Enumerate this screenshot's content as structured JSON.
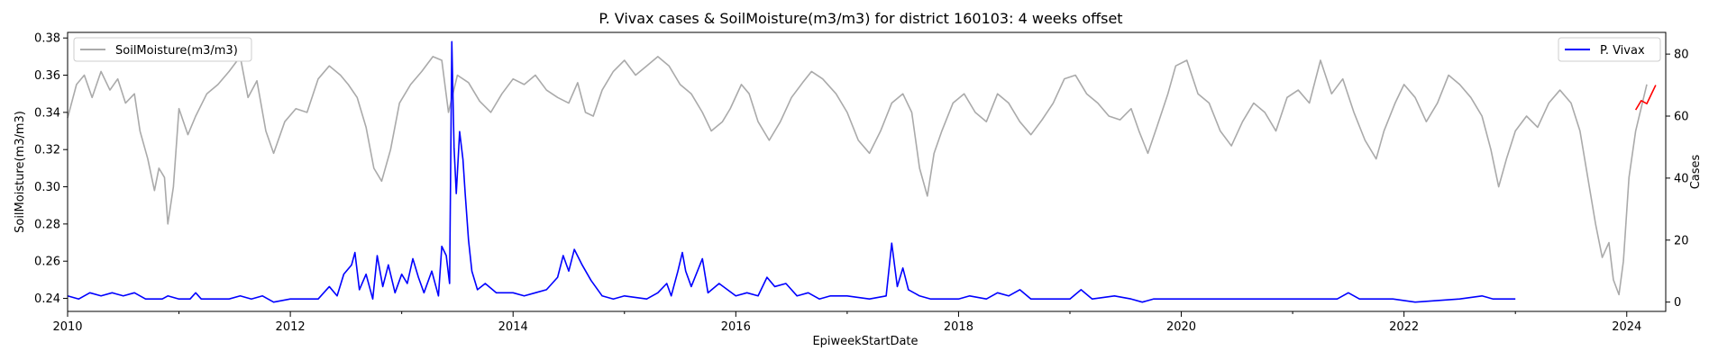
{
  "chart_data": {
    "type": "line",
    "title": "P. Vivax cases & SoilMoisture(m3/m3) for district 160103: 4 weeks offset",
    "xlabel": "EpiweekStartDate",
    "ylabel_left": "SoilMoisture(m3/m3)",
    "ylabel_right": "Cases",
    "x_range": [
      2010.0,
      2024.35
    ],
    "y_left_range": [
      0.233,
      0.383
    ],
    "y_right_range": [
      -3.0,
      87.0
    ],
    "x_ticks": [
      "2010",
      "2012",
      "2014",
      "2016",
      "2018",
      "2020",
      "2022",
      "2024"
    ],
    "x_tick_values": [
      2010,
      2012,
      2014,
      2016,
      2018,
      2020,
      2022,
      2024
    ],
    "y_left_ticks": [
      "0.24",
      "0.26",
      "0.28",
      "0.30",
      "0.32",
      "0.34",
      "0.36",
      "0.38"
    ],
    "y_left_tick_values": [
      0.24,
      0.26,
      0.28,
      0.3,
      0.32,
      0.34,
      0.36,
      0.38
    ],
    "y_right_ticks": [
      "0",
      "20",
      "40",
      "60",
      "80"
    ],
    "y_right_tick_values": [
      0,
      20,
      40,
      60,
      80
    ],
    "legend_left": {
      "label": "SoilMoisture(m3/m3)",
      "position": "upper-left"
    },
    "legend_right": {
      "label": "P. Vivax",
      "position": "upper-right"
    },
    "colors": {
      "soil": "#aaaaaa",
      "cases": "#0000ff",
      "forecast": "#ff0000"
    },
    "series": [
      {
        "name": "SoilMoisture(m3/m3)",
        "axis": "left",
        "points": [
          [
            2010.0,
            0.337
          ],
          [
            2010.08,
            0.355
          ],
          [
            2010.15,
            0.36
          ],
          [
            2010.22,
            0.348
          ],
          [
            2010.3,
            0.362
          ],
          [
            2010.38,
            0.352
          ],
          [
            2010.45,
            0.358
          ],
          [
            2010.52,
            0.345
          ],
          [
            2010.6,
            0.35
          ],
          [
            2010.65,
            0.33
          ],
          [
            2010.72,
            0.315
          ],
          [
            2010.78,
            0.298
          ],
          [
            2010.82,
            0.31
          ],
          [
            2010.87,
            0.305
          ],
          [
            2010.9,
            0.28
          ],
          [
            2010.95,
            0.3
          ],
          [
            2011.0,
            0.342
          ],
          [
            2011.08,
            0.328
          ],
          [
            2011.15,
            0.338
          ],
          [
            2011.25,
            0.35
          ],
          [
            2011.35,
            0.355
          ],
          [
            2011.45,
            0.362
          ],
          [
            2011.55,
            0.37
          ],
          [
            2011.62,
            0.348
          ],
          [
            2011.7,
            0.357
          ],
          [
            2011.78,
            0.33
          ],
          [
            2011.85,
            0.318
          ],
          [
            2011.95,
            0.335
          ],
          [
            2012.05,
            0.342
          ],
          [
            2012.15,
            0.34
          ],
          [
            2012.25,
            0.358
          ],
          [
            2012.35,
            0.365
          ],
          [
            2012.45,
            0.36
          ],
          [
            2012.52,
            0.355
          ],
          [
            2012.6,
            0.348
          ],
          [
            2012.68,
            0.332
          ],
          [
            2012.75,
            0.31
          ],
          [
            2012.82,
            0.303
          ],
          [
            2012.9,
            0.32
          ],
          [
            2012.98,
            0.345
          ],
          [
            2013.08,
            0.355
          ],
          [
            2013.18,
            0.362
          ],
          [
            2013.28,
            0.37
          ],
          [
            2013.36,
            0.368
          ],
          [
            2013.42,
            0.34
          ],
          [
            2013.5,
            0.36
          ],
          [
            2013.6,
            0.356
          ],
          [
            2013.7,
            0.346
          ],
          [
            2013.8,
            0.34
          ],
          [
            2013.9,
            0.35
          ],
          [
            2014.0,
            0.358
          ],
          [
            2014.1,
            0.355
          ],
          [
            2014.2,
            0.36
          ],
          [
            2014.3,
            0.352
          ],
          [
            2014.4,
            0.348
          ],
          [
            2014.5,
            0.345
          ],
          [
            2014.58,
            0.356
          ],
          [
            2014.65,
            0.34
          ],
          [
            2014.72,
            0.338
          ],
          [
            2014.8,
            0.352
          ],
          [
            2014.9,
            0.362
          ],
          [
            2015.0,
            0.368
          ],
          [
            2015.1,
            0.36
          ],
          [
            2015.2,
            0.365
          ],
          [
            2015.3,
            0.37
          ],
          [
            2015.4,
            0.365
          ],
          [
            2015.5,
            0.355
          ],
          [
            2015.6,
            0.35
          ],
          [
            2015.7,
            0.34
          ],
          [
            2015.78,
            0.33
          ],
          [
            2015.88,
            0.335
          ],
          [
            2015.95,
            0.342
          ],
          [
            2016.05,
            0.355
          ],
          [
            2016.12,
            0.35
          ],
          [
            2016.2,
            0.335
          ],
          [
            2016.3,
            0.325
          ],
          [
            2016.4,
            0.335
          ],
          [
            2016.5,
            0.348
          ],
          [
            2016.6,
            0.356
          ],
          [
            2016.68,
            0.362
          ],
          [
            2016.78,
            0.358
          ],
          [
            2016.9,
            0.35
          ],
          [
            2017.0,
            0.34
          ],
          [
            2017.1,
            0.325
          ],
          [
            2017.2,
            0.318
          ],
          [
            2017.3,
            0.33
          ],
          [
            2017.4,
            0.345
          ],
          [
            2017.5,
            0.35
          ],
          [
            2017.58,
            0.34
          ],
          [
            2017.65,
            0.31
          ],
          [
            2017.72,
            0.295
          ],
          [
            2017.78,
            0.318
          ],
          [
            2017.85,
            0.33
          ],
          [
            2017.95,
            0.345
          ],
          [
            2018.05,
            0.35
          ],
          [
            2018.15,
            0.34
          ],
          [
            2018.25,
            0.335
          ],
          [
            2018.35,
            0.35
          ],
          [
            2018.45,
            0.345
          ],
          [
            2018.55,
            0.335
          ],
          [
            2018.65,
            0.328
          ],
          [
            2018.75,
            0.336
          ],
          [
            2018.85,
            0.345
          ],
          [
            2018.95,
            0.358
          ],
          [
            2019.05,
            0.36
          ],
          [
            2019.15,
            0.35
          ],
          [
            2019.25,
            0.345
          ],
          [
            2019.35,
            0.338
          ],
          [
            2019.45,
            0.336
          ],
          [
            2019.55,
            0.342
          ],
          [
            2019.62,
            0.33
          ],
          [
            2019.7,
            0.318
          ],
          [
            2019.78,
            0.332
          ],
          [
            2019.88,
            0.35
          ],
          [
            2019.95,
            0.365
          ],
          [
            2020.05,
            0.368
          ],
          [
            2020.15,
            0.35
          ],
          [
            2020.25,
            0.345
          ],
          [
            2020.35,
            0.33
          ],
          [
            2020.45,
            0.322
          ],
          [
            2020.55,
            0.335
          ],
          [
            2020.65,
            0.345
          ],
          [
            2020.75,
            0.34
          ],
          [
            2020.85,
            0.33
          ],
          [
            2020.95,
            0.348
          ],
          [
            2021.05,
            0.352
          ],
          [
            2021.15,
            0.345
          ],
          [
            2021.25,
            0.368
          ],
          [
            2021.35,
            0.35
          ],
          [
            2021.45,
            0.358
          ],
          [
            2021.55,
            0.34
          ],
          [
            2021.65,
            0.325
          ],
          [
            2021.75,
            0.315
          ],
          [
            2021.82,
            0.33
          ],
          [
            2021.92,
            0.345
          ],
          [
            2022.0,
            0.355
          ],
          [
            2022.1,
            0.348
          ],
          [
            2022.2,
            0.335
          ],
          [
            2022.3,
            0.345
          ],
          [
            2022.4,
            0.36
          ],
          [
            2022.5,
            0.355
          ],
          [
            2022.6,
            0.348
          ],
          [
            2022.7,
            0.338
          ],
          [
            2022.78,
            0.32
          ],
          [
            2022.85,
            0.3
          ],
          [
            2022.92,
            0.315
          ],
          [
            2023.0,
            0.33
          ],
          [
            2023.1,
            0.338
          ],
          [
            2023.2,
            0.332
          ],
          [
            2023.3,
            0.345
          ],
          [
            2023.4,
            0.352
          ],
          [
            2023.5,
            0.345
          ],
          [
            2023.58,
            0.33
          ],
          [
            2023.65,
            0.305
          ],
          [
            2023.72,
            0.28
          ],
          [
            2023.78,
            0.262
          ],
          [
            2023.84,
            0.27
          ],
          [
            2023.88,
            0.25
          ],
          [
            2023.93,
            0.242
          ],
          [
            2023.97,
            0.26
          ],
          [
            2024.02,
            0.305
          ],
          [
            2024.08,
            0.33
          ],
          [
            2024.14,
            0.345
          ],
          [
            2024.18,
            0.355
          ]
        ]
      },
      {
        "name": "P. Vivax",
        "axis": "right",
        "points": [
          [
            2010.0,
            2
          ],
          [
            2010.1,
            1
          ],
          [
            2010.2,
            3
          ],
          [
            2010.3,
            2
          ],
          [
            2010.4,
            3
          ],
          [
            2010.5,
            2
          ],
          [
            2010.6,
            3
          ],
          [
            2010.7,
            1
          ],
          [
            2010.85,
            1
          ],
          [
            2010.9,
            2
          ],
          [
            2011.0,
            1
          ],
          [
            2011.1,
            1
          ],
          [
            2011.15,
            3
          ],
          [
            2011.2,
            1
          ],
          [
            2011.45,
            1
          ],
          [
            2011.55,
            2
          ],
          [
            2011.65,
            1
          ],
          [
            2011.75,
            2
          ],
          [
            2011.85,
            0
          ],
          [
            2012.0,
            1
          ],
          [
            2012.25,
            1
          ],
          [
            2012.35,
            5
          ],
          [
            2012.42,
            2
          ],
          [
            2012.48,
            9
          ],
          [
            2012.55,
            12
          ],
          [
            2012.58,
            16
          ],
          [
            2012.62,
            4
          ],
          [
            2012.68,
            9
          ],
          [
            2012.74,
            1
          ],
          [
            2012.78,
            15
          ],
          [
            2012.83,
            5
          ],
          [
            2012.88,
            12
          ],
          [
            2012.94,
            3
          ],
          [
            2013.0,
            9
          ],
          [
            2013.05,
            6
          ],
          [
            2013.1,
            14
          ],
          [
            2013.15,
            8
          ],
          [
            2013.2,
            3
          ],
          [
            2013.27,
            10
          ],
          [
            2013.33,
            2
          ],
          [
            2013.36,
            18
          ],
          [
            2013.4,
            15
          ],
          [
            2013.43,
            6
          ],
          [
            2013.45,
            84
          ],
          [
            2013.47,
            50
          ],
          [
            2013.49,
            35
          ],
          [
            2013.52,
            55
          ],
          [
            2013.55,
            46
          ],
          [
            2013.57,
            35
          ],
          [
            2013.6,
            20
          ],
          [
            2013.63,
            10
          ],
          [
            2013.68,
            4
          ],
          [
            2013.75,
            6
          ],
          [
            2013.85,
            3
          ],
          [
            2014.0,
            3
          ],
          [
            2014.1,
            2
          ],
          [
            2014.2,
            3
          ],
          [
            2014.3,
            4
          ],
          [
            2014.4,
            8
          ],
          [
            2014.45,
            15
          ],
          [
            2014.5,
            10
          ],
          [
            2014.55,
            17
          ],
          [
            2014.62,
            12
          ],
          [
            2014.7,
            7
          ],
          [
            2014.8,
            2
          ],
          [
            2014.9,
            1
          ],
          [
            2015.0,
            2
          ],
          [
            2015.2,
            1
          ],
          [
            2015.3,
            3
          ],
          [
            2015.38,
            6
          ],
          [
            2015.42,
            2
          ],
          [
            2015.48,
            10
          ],
          [
            2015.52,
            16
          ],
          [
            2015.55,
            10
          ],
          [
            2015.6,
            5
          ],
          [
            2015.7,
            14
          ],
          [
            2015.75,
            3
          ],
          [
            2015.85,
            6
          ],
          [
            2016.0,
            2
          ],
          [
            2016.1,
            3
          ],
          [
            2016.2,
            2
          ],
          [
            2016.28,
            8
          ],
          [
            2016.35,
            5
          ],
          [
            2016.45,
            6
          ],
          [
            2016.55,
            2
          ],
          [
            2016.65,
            3
          ],
          [
            2016.75,
            1
          ],
          [
            2016.85,
            2
          ],
          [
            2017.0,
            2
          ],
          [
            2017.2,
            1
          ],
          [
            2017.35,
            2
          ],
          [
            2017.4,
            19
          ],
          [
            2017.45,
            5
          ],
          [
            2017.5,
            11
          ],
          [
            2017.55,
            4
          ],
          [
            2017.65,
            2
          ],
          [
            2017.75,
            1
          ],
          [
            2018.0,
            1
          ],
          [
            2018.1,
            2
          ],
          [
            2018.25,
            1
          ],
          [
            2018.35,
            3
          ],
          [
            2018.45,
            2
          ],
          [
            2018.55,
            4
          ],
          [
            2018.65,
            1
          ],
          [
            2018.85,
            1
          ],
          [
            2019.0,
            1
          ],
          [
            2019.1,
            4
          ],
          [
            2019.2,
            1
          ],
          [
            2019.4,
            2
          ],
          [
            2019.55,
            1
          ],
          [
            2019.65,
            0
          ],
          [
            2019.75,
            1
          ],
          [
            2020.0,
            1
          ],
          [
            2021.0,
            1
          ],
          [
            2021.4,
            1
          ],
          [
            2021.5,
            3
          ],
          [
            2021.6,
            1
          ],
          [
            2021.9,
            1
          ],
          [
            2022.1,
            0
          ],
          [
            2022.5,
            1
          ],
          [
            2022.7,
            2
          ],
          [
            2022.8,
            1
          ],
          [
            2023.0,
            1
          ]
        ]
      },
      {
        "name": "",
        "axis": "right",
        "points": [
          [
            2024.08,
            62
          ],
          [
            2024.13,
            65
          ],
          [
            2024.18,
            64
          ],
          [
            2024.22,
            67
          ],
          [
            2024.26,
            70
          ]
        ]
      }
    ]
  }
}
